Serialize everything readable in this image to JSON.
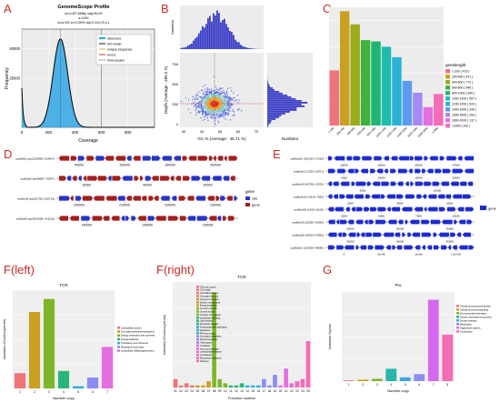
{
  "panel_labels": {
    "a": "A",
    "b": "B",
    "c": "C",
    "d": "D",
    "e": "E",
    "fl": "F(left)",
    "fr": "F(right)",
    "g": "G"
  },
  "chart_data": [
    {
      "id": "A",
      "type": "line",
      "title": "GenomeScope Profile",
      "subtitle_lines": [
        "len:4,307,665bp uniq:96.4%",
        "a:100%",
        "kcov:291 err:0.199% dup:0.34 k:19 p:1"
      ],
      "xlabel": "Coverage",
      "ylabel": "Frequency",
      "xlim": [
        0,
        1000
      ],
      "ylim": [
        0,
        50000
      ],
      "xticks": [
        0,
        200,
        400,
        600,
        800
      ],
      "yticks": [
        25000,
        40000
      ],
      "peak": {
        "x": 291,
        "y": 45000
      },
      "legend": [
        "observed",
        "full model",
        "unique sequence",
        "errors",
        "kmer-peaks"
      ]
    },
    {
      "id": "B",
      "type": "scatter",
      "xlabel": "GC % (Average : 45.71 %)",
      "ylabel": "Depth (Average : 289.2 X)",
      "marginal_y_label": "Numbers",
      "marginal_x_label": "Numbers",
      "xticks": [
        30,
        40,
        50,
        60,
        70
      ],
      "yticks": [
        0,
        250,
        500,
        750
      ],
      "center": {
        "gc": 45.71,
        "depth": 289.2
      }
    },
    {
      "id": "C",
      "type": "bar",
      "categories": [
        "1-200",
        "200-400",
        "400-600",
        "600-800",
        "800-1000",
        "1000-1200",
        "1200-1400",
        "1400-1600",
        "1600-1800",
        "1800-2000",
        ">2000"
      ],
      "values": [
        420,
        870,
        770,
        650,
        640,
        600,
        520,
        340,
        250,
        140,
        240
      ],
      "legend_title": "genelength",
      "legend": [
        "1-200 ( 419 )",
        "200-400 ( 871 )",
        "400-600 ( 772 )",
        "600-800 ( 646 )",
        "800-1000 ( 640 )",
        "1000-1200 ( 597 )",
        "1200-1400 ( 524 )",
        "1400-1600 ( 339 )",
        "1600-1800 ( 252 )",
        "1800-2000 ( 137 )",
        ">2000 ( 242 )"
      ],
      "yticks": [
        0,
        200,
        400,
        600,
        800
      ],
      "ylim": [
        0,
        900
      ],
      "colors": [
        "#f0737a",
        "#c9a022",
        "#9aab1c",
        "#3fb33b",
        "#1fb574",
        "#1fbcb0",
        "#2ab2d6",
        "#5b9cf0",
        "#a58af5",
        "#e46fe0",
        "#f56cb7"
      ]
    },
    {
      "id": "D",
      "type": "diagram",
      "tracks": [
        {
          "label": "scaffold1 (pp1259999–233497)",
          "ticks": [
            "50000",
            "100000",
            "150000",
            "200000"
          ]
        },
        {
          "label": "scaffold2 (pp36887–70547)",
          "ticks": [
            "20000",
            "40000",
            "60000"
          ]
        },
        {
          "label": "scaffold3 (pp161783–230713)",
          "ticks": [
            "200000",
            "210000",
            "220000",
            "230000"
          ]
        },
        {
          "label": "scaffold5 (pp2814500–141120)",
          "ticks": [
            "140000",
            "145000",
            "150000"
          ]
        }
      ],
      "legend_title": "gene",
      "legend": [
        "cds",
        "gene"
      ]
    },
    {
      "id": "E",
      "type": "diagram",
      "tracks": [
        {
          "label": "scaffold10 (322413–27516)",
          "ticks": [
            "15000",
            "20000",
            "25000",
            "27500"
          ]
        },
        {
          "label": "scaffold12 (2320–22971)",
          "ticks": [
            "5000",
            "10000",
            "15000",
            "20000"
          ]
        },
        {
          "label": "scaffold14 (42768–13253)",
          "ticks": [
            "5000",
            "10000"
          ]
        },
        {
          "label": "scaffold16 (14216–7055)",
          "ticks": [
            "2000",
            "4000",
            "6000"
          ]
        },
        {
          "label": "scaffold18 (1465–11109)",
          "ticks": [
            "2500",
            "5000",
            "7500",
            "10000"
          ]
        },
        {
          "label": "scaffold19 (22559–33356)",
          "ticks": [
            "25000",
            "30000",
            "35000"
          ]
        },
        {
          "label": "scaffold20 (29016–47859)",
          "ticks": [
            "30000",
            "40000",
            "45000"
          ]
        },
        {
          "label": "scaffold21 (123255–48586)",
          "ticks": [
            "0",
            "5e+05",
            "1e+06",
            "1.5e+06"
          ]
        }
      ],
      "legend": [
        "gene"
      ]
    },
    {
      "id": "F-left",
      "type": "bar",
      "title": "TCR",
      "xlabel": "Number copy",
      "ylabel": "Annotation of function (percent)",
      "categories": [
        "1",
        "2",
        "3",
        "4",
        "5",
        "6",
        "7"
      ],
      "values": [
        7,
        35,
        41,
        8,
        1,
        5,
        19
      ],
      "ylim": [
        0,
        45
      ],
      "colors": [
        "#f0737a",
        "#c9a022",
        "#7fb52a",
        "#29b57a",
        "#2ab2d6",
        "#8c8cf5",
        "#e46fe0"
      ],
      "legend": [
        "Unclassified protein",
        "Cell wall/membrane/envelope biogenesis",
        "Energy production and conversion",
        "Posttranslational",
        "Translation and ribosomal",
        "Replication and repair",
        "Intracellular trafficking/secretion"
      ]
    },
    {
      "id": "F-right",
      "type": "bar",
      "title": "TCR",
      "xlabel": "Function number",
      "ylabel": "Annotation of function (percent)",
      "categories": [
        "01",
        "02",
        "03",
        "04",
        "05",
        "06",
        "07",
        "08",
        "09",
        "10",
        "11",
        "12",
        "13",
        "14",
        "15",
        "16",
        "17",
        "18",
        "19",
        "20",
        "21",
        "22",
        "23",
        "24",
        "25"
      ],
      "values": [
        4,
        1,
        2,
        1,
        1,
        1,
        3,
        45,
        4,
        2,
        1,
        1,
        2,
        1,
        1,
        1,
        4,
        1,
        6,
        1,
        9,
        2,
        3,
        4,
        22
      ],
      "ylim": [
        0,
        50
      ],
      "legend": [
        "Cell cycle control",
        "Cell motility",
        "Cell wall/membrane",
        "Chromatin structure",
        "Coenzyme transport",
        "Defense mechanisms",
        "Energy production",
        "Function unknown",
        "General function",
        "Inorganic ion transport",
        "Intracellular trafficking",
        "Lipid transport",
        "Nucleotide transport",
        "Posttranslational modification",
        "Replication",
        "RNA processing",
        "Secondary metabolites",
        "Signal transduction",
        "Transcription",
        "Translation",
        "Amino acid transport",
        "Carbohydrate transport",
        "Cytoskeleton",
        "Extracellular structures",
        "Mobilome"
      ]
    },
    {
      "id": "G",
      "type": "bar",
      "title": "Pro",
      "xlabel": "Number copy",
      "ylabel": "Annotation of genes",
      "categories": [
        "1",
        "2",
        "3",
        "4",
        "5",
        "6",
        "7",
        "8"
      ],
      "values": [
        1,
        2,
        3,
        16,
        5,
        9,
        105,
        60
      ],
      "ylim": [
        0,
        115
      ],
      "colors": [
        "#f0737a",
        "#c9a022",
        "#7fb52a",
        "#29b5a8",
        "#3aa6e0",
        "#8c8cf5",
        "#d469f0",
        "#f56cb7"
      ],
      "legend": [
        "Cellular processes/cell division",
        "Cellular processes/signaling",
        "Environmental information",
        "Genetic information processing",
        "Human diseases",
        "Metabolism",
        "Organismal systems",
        "Unclassified"
      ]
    }
  ]
}
